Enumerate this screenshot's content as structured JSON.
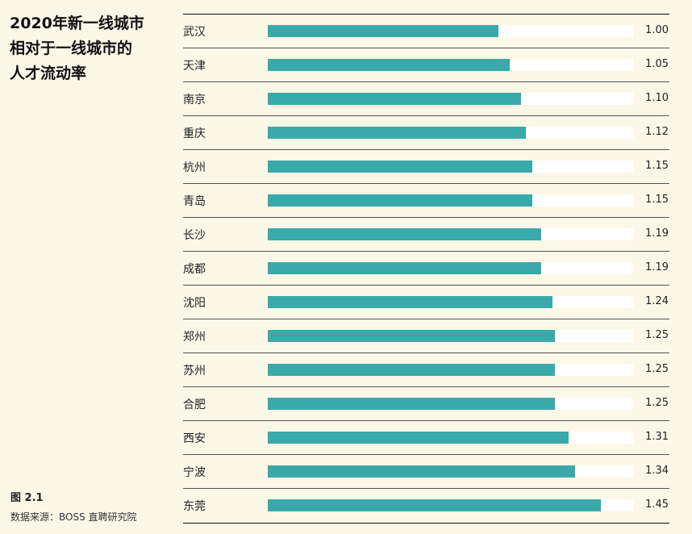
{
  "title": "2020年新一线城市相对于一线城市的人才流动率",
  "title_lines": [
    "2020年新一线城市",
    "相对于一线城市的",
    "人才流动率"
  ],
  "figure_label": "图 2.1",
  "source": "数据来源：BOSS 直聘研究院",
  "colors": {
    "bar": "#3aa9a9",
    "track": "#ffffff",
    "background": "#fbf8e8"
  },
  "chart_data": {
    "type": "bar",
    "orientation": "horizontal",
    "title": "2020年新一线城市相对于一线城市的人才流动率",
    "xlabel": "",
    "ylabel": "",
    "categories": [
      "武汉",
      "天津",
      "南京",
      "重庆",
      "杭州",
      "青岛",
      "长沙",
      "成都",
      "沈阳",
      "郑州",
      "苏州",
      "合肥",
      "西安",
      "宁波",
      "东莞"
    ],
    "values": [
      1.0,
      1.05,
      1.1,
      1.12,
      1.15,
      1.15,
      1.19,
      1.19,
      1.24,
      1.25,
      1.25,
      1.25,
      1.31,
      1.34,
      1.45
    ],
    "labels": [
      "1.00",
      "1.05",
      "1.10",
      "1.12",
      "1.15",
      "1.15",
      "1.19",
      "1.19",
      "1.24",
      "1.25",
      "1.25",
      "1.25",
      "1.31",
      "1.34",
      "1.45"
    ],
    "bar_fraction_of_track": [
      0.631,
      0.662,
      0.693,
      0.706,
      0.724,
      0.724,
      0.749,
      0.749,
      0.779,
      0.786,
      0.786,
      0.786,
      0.824,
      0.842,
      0.912
    ],
    "grid": false,
    "legend": null,
    "source": "数据来源：BOSS 直聘研究院"
  }
}
